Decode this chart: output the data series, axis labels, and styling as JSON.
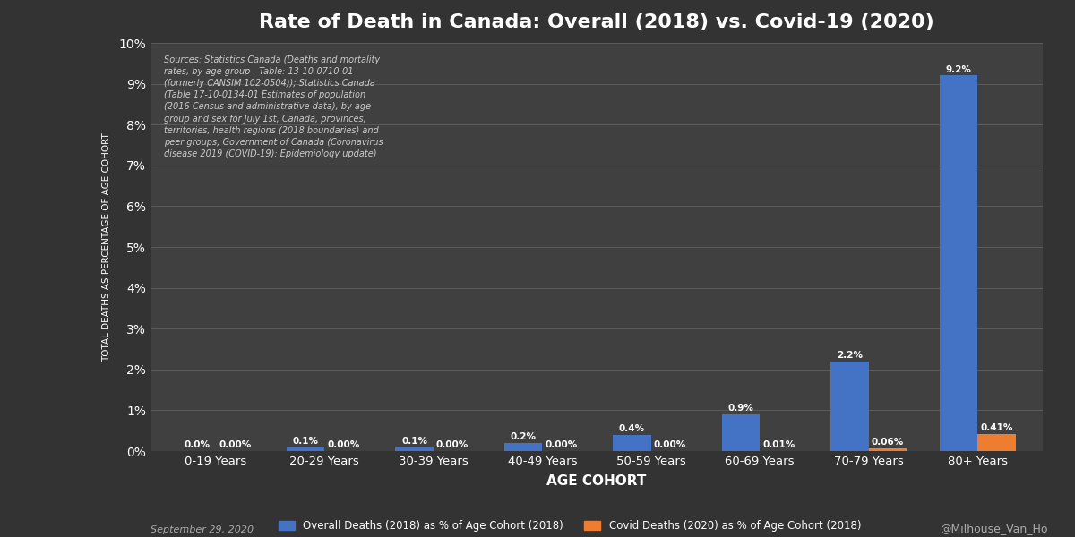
{
  "title": "Rate of Death in Canada: Overall (2018) vs. Covid-19 (2020)",
  "categories": [
    "0-19 Years",
    "20-29 Years",
    "30-39 Years",
    "40-49 Years",
    "50-59 Years",
    "60-69 Years",
    "70-79 Years",
    "80+ Years"
  ],
  "overall_values": [
    0.0,
    0.1,
    0.1,
    0.2,
    0.4,
    0.9,
    2.2,
    9.2
  ],
  "covid_values": [
    0.0,
    0.0,
    0.0,
    0.0,
    0.0,
    0.01,
    0.06,
    0.41
  ],
  "overall_labels": [
    "0.0%",
    "0.1%",
    "0.1%",
    "0.2%",
    "0.4%",
    "0.9%",
    "2.2%",
    "9.2%"
  ],
  "covid_labels": [
    "0.00%",
    "0.00%",
    "0.00%",
    "0.00%",
    "0.00%",
    "0.01%",
    "0.06%",
    "0.41%"
  ],
  "overall_color": "#4472C4",
  "covid_color": "#ED7D31",
  "background_color": "#333333",
  "axes_background": "#404040",
  "text_color": "#FFFFFF",
  "grid_color": "#606060",
  "ylabel": "TOTAL DEATHS AS PERCENTAGE OF AGE COHORT",
  "xlabel": "AGE COHORT",
  "ylim": [
    0,
    10
  ],
  "yticks": [
    0,
    1,
    2,
    3,
    4,
    5,
    6,
    7,
    8,
    9,
    10
  ],
  "ytick_labels": [
    "0%",
    "1%",
    "2%",
    "3%",
    "4%",
    "5%",
    "6%",
    "7%",
    "8%",
    "9%",
    "10%"
  ],
  "legend_overall": "Overall Deaths (2018) as % of Age Cohort (2018)",
  "legend_covid": "Covid Deaths (2020) as % of Age Cohort (2018)",
  "source_text": "Sources: Statistics Canada (Deaths and mortality\nrates, by age group - Table: 13-10-0710-01\n(formerly CANSIM 102-0504)); Statistics Canada\n(Table 17-10-0134-01 Estimates of population\n(2016 Census and administrative data), by age\ngroup and sex for July 1st, Canada, provinces,\nterritories, health regions (2018 boundaries) and\npeer groups; Government of Canada (Coronavirus\ndisease 2019 (COVID-19): Epidemiology update)",
  "date_text": "September 29, 2020",
  "watermark": "@Milhouse_Van_Ho",
  "bar_width": 0.35
}
